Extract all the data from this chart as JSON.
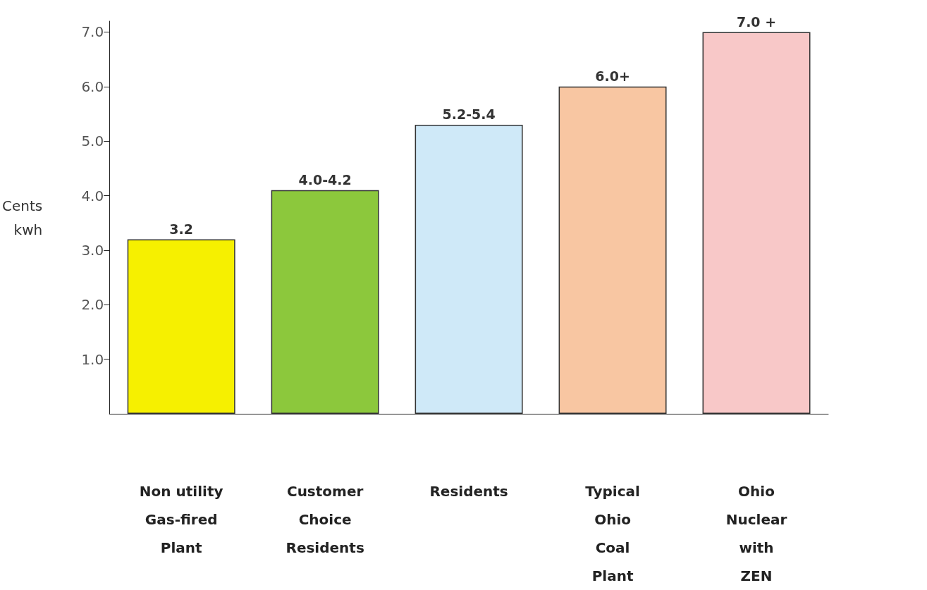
{
  "chart_data": {
    "type": "bar",
    "ylabel": "Cents\nkwh",
    "categories": [
      "Non utility\nGas-fired\nPlant",
      "Customer\nChoice\nResidents",
      "Residents",
      "Typical\nOhio\nCoal\nPlant",
      "Ohio\nNuclear\nwith\nZEN"
    ],
    "values": [
      3.2,
      4.1,
      5.3,
      6.0,
      7.0
    ],
    "value_labels": [
      "3.2",
      "4.0-4.2",
      "5.2-5.4",
      "6.0+",
      "7.0 +"
    ],
    "colors": [
      "#f6f000",
      "#8cc83c",
      "#cfe9f8",
      "#f8c6a2",
      "#f8c8c8"
    ],
    "ylim": [
      0,
      7.2
    ],
    "yticks": [
      {
        "value": 1,
        "label": "1.0"
      },
      {
        "value": 2,
        "label": "2.0"
      },
      {
        "value": 3,
        "label": "3.0"
      },
      {
        "value": 4,
        "label": "4.0"
      },
      {
        "value": 5,
        "label": "5.0"
      },
      {
        "value": 6,
        "label": "6.0"
      },
      {
        "value": 7,
        "label": "7.0"
      }
    ],
    "grid": false
  }
}
